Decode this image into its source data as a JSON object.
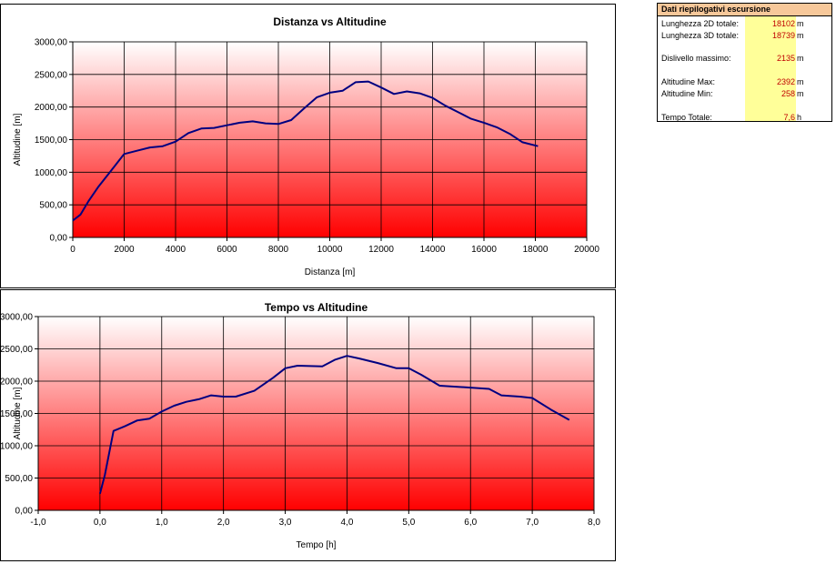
{
  "summary": {
    "title": "Dati riepilogativi escursione",
    "rows": [
      {
        "label": "Lunghezza 2D totale:",
        "value": "18102",
        "unit": "m"
      },
      {
        "label": "Lunghezza 3D totale:",
        "value": "18739",
        "unit": "m"
      },
      {
        "label": "Dislivello massimo:",
        "value": "2135",
        "unit": "m"
      },
      {
        "label": "Altitudine Max:",
        "value": "2392",
        "unit": "m"
      },
      {
        "label": "Altitudine Min:",
        "value": "258",
        "unit": "m"
      },
      {
        "label": "Tempo Totale:",
        "value": "7,6",
        "unit": "h"
      }
    ]
  },
  "colors": {
    "line": "#000080",
    "gradient_top": "#ffffff",
    "gradient_bottom": "#ff0000",
    "summary_header": "#f7c89a",
    "summary_values": "#ffff99",
    "value_text": "#c00000"
  },
  "chart_data": [
    {
      "type": "line",
      "title": "Distanza vs Altitudine",
      "xlabel": "Distanza [m]",
      "ylabel": "Altitudine [m]",
      "xlim": [
        0,
        20000
      ],
      "ylim": [
        0,
        3000
      ],
      "x_ticks": [
        "0",
        "2000",
        "4000",
        "6000",
        "8000",
        "10000",
        "12000",
        "14000",
        "16000",
        "18000",
        "20000"
      ],
      "y_ticks": [
        "0,00",
        "500,00",
        "1000,00",
        "1500,00",
        "2000,00",
        "2500,00",
        "3000,00"
      ],
      "grid": true,
      "legend": "none",
      "series": [
        {
          "x": [
            0,
            300,
            600,
            1000,
            1500,
            2000,
            2500,
            3000,
            3500,
            4000,
            4500,
            5000,
            5500,
            6000,
            6500,
            7000,
            7500,
            8000,
            8500,
            9000,
            9500,
            10000,
            10500,
            11000,
            11500,
            12000,
            12500,
            13000,
            13500,
            14000,
            14500,
            15000,
            15500,
            16000,
            16500,
            17000,
            17500,
            18102
          ],
          "y": [
            258,
            350,
            550,
            780,
            1030,
            1280,
            1330,
            1380,
            1400,
            1470,
            1600,
            1670,
            1680,
            1720,
            1760,
            1780,
            1750,
            1740,
            1800,
            1980,
            2150,
            2220,
            2250,
            2380,
            2392,
            2300,
            2200,
            2240,
            2210,
            2140,
            2020,
            1920,
            1820,
            1760,
            1690,
            1590,
            1460,
            1400
          ]
        }
      ]
    },
    {
      "type": "line",
      "title": "Tempo vs Altitudine",
      "xlabel": "Tempo [h]",
      "ylabel": "Altitudine [m]",
      "xlim": [
        -1,
        8
      ],
      "ylim": [
        0,
        3000
      ],
      "x_ticks": [
        "-1,0",
        "0,0",
        "1,0",
        "2,0",
        "3,0",
        "4,0",
        "5,0",
        "6,0",
        "7,0",
        "8,0"
      ],
      "y_ticks": [
        "0,00",
        "500,00",
        "1000,00",
        "1500,00",
        "2000,00",
        "2500,00",
        "3000,00"
      ],
      "grid": true,
      "legend": "none",
      "series": [
        {
          "x": [
            0,
            0.08,
            0.22,
            0.4,
            0.6,
            0.8,
            1.0,
            1.2,
            1.4,
            1.6,
            1.8,
            2.0,
            2.2,
            2.5,
            2.8,
            3.0,
            3.2,
            3.6,
            3.8,
            4.0,
            4.2,
            4.5,
            4.8,
            5.0,
            5.2,
            5.5,
            6.0,
            6.3,
            6.5,
            6.8,
            7.0,
            7.3,
            7.6
          ],
          "y": [
            258,
            550,
            1230,
            1300,
            1390,
            1420,
            1530,
            1620,
            1680,
            1720,
            1780,
            1760,
            1760,
            1850,
            2050,
            2200,
            2240,
            2230,
            2330,
            2392,
            2350,
            2280,
            2200,
            2200,
            2100,
            1930,
            1900,
            1880,
            1780,
            1760,
            1740,
            1560,
            1400
          ]
        }
      ]
    }
  ]
}
